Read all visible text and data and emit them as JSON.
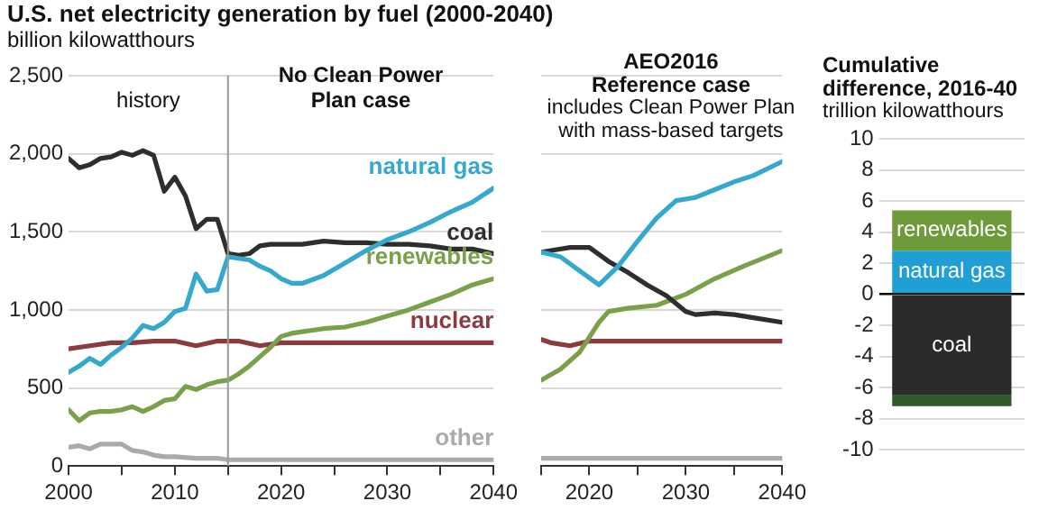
{
  "chart_data": [
    {
      "type": "line",
      "title": "U.S. net electricity generation by fuel (2000-2040)",
      "ylabel": "billion kilowatthours",
      "xlim": [
        2000,
        2040
      ],
      "xticks": [
        2000,
        {
          "value": 2005,
          "label": null
        },
        2010,
        {
          "value": 2015,
          "label": null
        },
        2020,
        {
          "value": 2025,
          "label": null
        },
        2030,
        {
          "value": 2035,
          "label": null
        },
        2040
      ],
      "ylim": [
        0,
        2500
      ],
      "yticks": [
        0,
        500,
        {
          "value": 1000,
          "label": "1,000"
        },
        {
          "value": 1500,
          "label": "1,500"
        },
        {
          "value": 2000,
          "label": "2,000"
        },
        {
          "value": 2500,
          "label": "2,500"
        }
      ],
      "grid": "y",
      "ref_lines": [
        {
          "axis": "x",
          "value": 2015,
          "color": "#9a9a9a"
        }
      ],
      "annotations": [
        "history",
        "No Clean Power Plan case"
      ],
      "series": [
        {
          "name": "natural gas",
          "color": "#35a9cc",
          "x": [
            2000,
            2001,
            2002,
            2003,
            2004,
            2005,
            2006,
            2007,
            2008,
            2009,
            2010,
            2011,
            2012,
            2013,
            2014,
            2015,
            2016,
            2017,
            2018,
            2019,
            2020,
            2021,
            2022,
            2024,
            2026,
            2028,
            2030,
            2032,
            2034,
            2036,
            2038,
            2040
          ],
          "values": [
            600,
            640,
            690,
            650,
            710,
            760,
            820,
            900,
            880,
            920,
            990,
            1010,
            1230,
            1120,
            1130,
            1340,
            1330,
            1320,
            1280,
            1250,
            1200,
            1170,
            1170,
            1220,
            1300,
            1380,
            1450,
            1500,
            1560,
            1630,
            1690,
            1780
          ]
        },
        {
          "name": "coal",
          "color": "#2e2e2e",
          "x": [
            2000,
            2001,
            2002,
            2003,
            2004,
            2005,
            2006,
            2007,
            2008,
            2009,
            2010,
            2011,
            2012,
            2013,
            2014,
            2015,
            2016,
            2017,
            2018,
            2019,
            2020,
            2022,
            2024,
            2026,
            2028,
            2030,
            2032,
            2034,
            2036,
            2038,
            2040
          ],
          "values": [
            1970,
            1910,
            1930,
            1970,
            1980,
            2010,
            1990,
            2020,
            1990,
            1760,
            1850,
            1730,
            1520,
            1580,
            1580,
            1360,
            1350,
            1360,
            1410,
            1420,
            1420,
            1420,
            1440,
            1430,
            1430,
            1420,
            1420,
            1410,
            1390,
            1390,
            1360
          ]
        },
        {
          "name": "renewables",
          "color": "#7aa14a",
          "x": [
            2000,
            2001,
            2002,
            2003,
            2004,
            2005,
            2006,
            2007,
            2008,
            2009,
            2010,
            2011,
            2012,
            2013,
            2014,
            2015,
            2016,
            2017,
            2018,
            2019,
            2020,
            2021,
            2022,
            2024,
            2026,
            2028,
            2030,
            2032,
            2034,
            2036,
            2038,
            2040
          ],
          "values": [
            360,
            290,
            340,
            350,
            350,
            360,
            380,
            350,
            380,
            420,
            430,
            510,
            490,
            520,
            540,
            550,
            590,
            640,
            700,
            760,
            830,
            850,
            860,
            880,
            890,
            920,
            960,
            1000,
            1050,
            1100,
            1160,
            1200
          ]
        },
        {
          "name": "nuclear",
          "color": "#8b3a3e",
          "x": [
            2000,
            2002,
            2004,
            2006,
            2008,
            2010,
            2012,
            2014,
            2016,
            2018,
            2019,
            2020,
            2040
          ],
          "values": [
            750,
            770,
            790,
            790,
            800,
            800,
            770,
            800,
            800,
            770,
            780,
            790,
            790
          ]
        },
        {
          "name": "other",
          "color": "#aaaaaa",
          "x": [
            2000,
            2001,
            2002,
            2003,
            2004,
            2005,
            2006,
            2007,
            2008,
            2009,
            2010,
            2012,
            2014,
            2015,
            2040
          ],
          "values": [
            120,
            130,
            110,
            140,
            140,
            140,
            100,
            90,
            70,
            60,
            60,
            50,
            50,
            40,
            40
          ]
        }
      ]
    },
    {
      "type": "line",
      "title": "AEO2016",
      "subtitle": "Reference case",
      "annotations": [
        "includes Clean Power Plan with mass-based targets"
      ],
      "xlim": [
        2015,
        2040
      ],
      "xticks": [
        {
          "value": 2015,
          "label": null
        },
        2020,
        {
          "value": 2025,
          "label": null
        },
        2030,
        {
          "value": 2035,
          "label": null
        },
        2040
      ],
      "ylim": [
        0,
        2500
      ],
      "yticks": [
        0,
        500,
        1000,
        1500,
        2000,
        2500
      ],
      "tick_labels": "x",
      "grid": "y",
      "series": [
        {
          "color": "#35a9cc",
          "x": [
            2015,
            2017,
            2019,
            2021,
            2023,
            2025,
            2027,
            2029,
            2031,
            2033,
            2035,
            2037,
            2040
          ],
          "values": [
            1370,
            1340,
            1250,
            1160,
            1280,
            1440,
            1590,
            1700,
            1720,
            1770,
            1820,
            1860,
            1950
          ]
        },
        {
          "color": "#2e2e2e",
          "x": [
            2015,
            2018,
            2020,
            2022,
            2024,
            2026,
            2028,
            2030,
            2031,
            2033,
            2035,
            2037,
            2040
          ],
          "values": [
            1370,
            1400,
            1400,
            1310,
            1240,
            1160,
            1090,
            990,
            970,
            980,
            970,
            950,
            920
          ]
        },
        {
          "color": "#7aa14a",
          "x": [
            2015,
            2017,
            2019,
            2021,
            2022,
            2024,
            2027,
            2030,
            2033,
            2036,
            2040
          ],
          "values": [
            550,
            620,
            730,
            920,
            990,
            1010,
            1030,
            1100,
            1200,
            1280,
            1380
          ]
        },
        {
          "color": "#8b3a3e",
          "x": [
            2015,
            2016,
            2018,
            2020,
            2040
          ],
          "values": [
            810,
            790,
            770,
            800,
            800
          ]
        },
        {
          "color": "#aaaaaa",
          "x": [
            2015,
            2040
          ],
          "values": [
            50,
            50
          ]
        }
      ]
    },
    {
      "type": "bar",
      "stacked": true,
      "title": "Cumulative difference, 2016-40",
      "ylabel": "trillion kilowatthours",
      "categories": [
        null
      ],
      "ylim": [
        -10,
        10
      ],
      "yticks": [
        -10,
        -8,
        -6,
        -4,
        -2,
        0,
        2,
        4,
        6,
        8,
        10
      ],
      "grid": "y",
      "series": [
        {
          "name": "natural gas",
          "color": "#1f9fd4",
          "values": [
            2.8
          ]
        },
        {
          "name": "renewables",
          "color": "#6e9a3a",
          "values": [
            2.6
          ]
        },
        {
          "name": "coal",
          "color": "#2b2b2b",
          "values": [
            -6.5
          ]
        },
        {
          "color": "#2f5a2a",
          "values": [
            -0.7
          ]
        }
      ]
    }
  ]
}
